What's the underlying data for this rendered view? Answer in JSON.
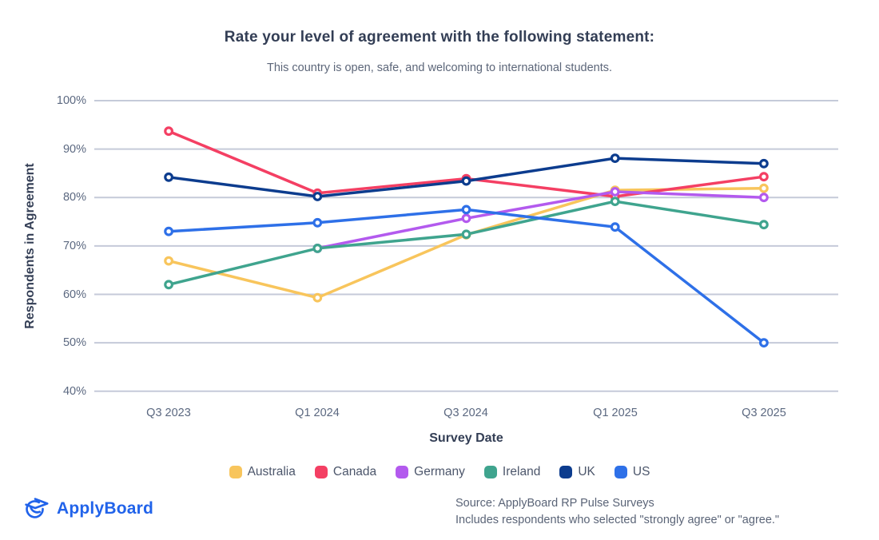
{
  "header": {
    "title": "Rate your level of agreement with the following statement:",
    "subtitle": "This country is open, safe, and welcoming to international students."
  },
  "chart_data": {
    "type": "line",
    "title": "Rate your level of agreement with the following statement:",
    "subtitle": "This country is open, safe, and welcoming to international students.",
    "categories": [
      "Q3 2023",
      "Q1 2024",
      "Q3 2024",
      "Q1 2025",
      "Q3 2025"
    ],
    "series": [
      {
        "name": "Australia",
        "color": "#F8C55C",
        "values": [
          66.9,
          59.3,
          72.3,
          81.5,
          81.9
        ]
      },
      {
        "name": "Canada",
        "color": "#F43F63",
        "values": [
          93.7,
          80.9,
          83.9,
          80.2,
          84.3
        ]
      },
      {
        "name": "Germany",
        "color": "#B35AEE",
        "values": [
          null,
          69.5,
          75.7,
          81.2,
          80.0
        ]
      },
      {
        "name": "Ireland",
        "color": "#3FA48E",
        "values": [
          62.0,
          69.5,
          72.4,
          79.2,
          74.4
        ]
      },
      {
        "name": "UK",
        "color": "#0C3C8E",
        "values": [
          84.2,
          80.2,
          83.4,
          88.1,
          87.0
        ]
      },
      {
        "name": "US",
        "color": "#2E70E8",
        "values": [
          73.0,
          74.8,
          77.5,
          73.9,
          50.0
        ]
      }
    ],
    "xlabel": "Survey Date",
    "ylabel": "Respondents in Agreement",
    "ylim": [
      40,
      100
    ],
    "yticks": [
      "100%",
      "90%",
      "80%",
      "70%",
      "60%",
      "50%",
      "40%"
    ],
    "grid": true,
    "legend_position": "bottom",
    "marker": "open-circle"
  },
  "footer": {
    "logo_text": "ApplyBoard",
    "source_line1": "Source: ApplyBoard RP Pulse Surveys",
    "source_line2": "Includes respondents who selected \"strongly agree\" or \"agree.\""
  },
  "colors": {
    "accent_blue": "#2163EA",
    "grid": "#C5CAD9",
    "title_text": "#333E55",
    "muted_text": "#5A6477",
    "axis_text": "#5B6880"
  }
}
